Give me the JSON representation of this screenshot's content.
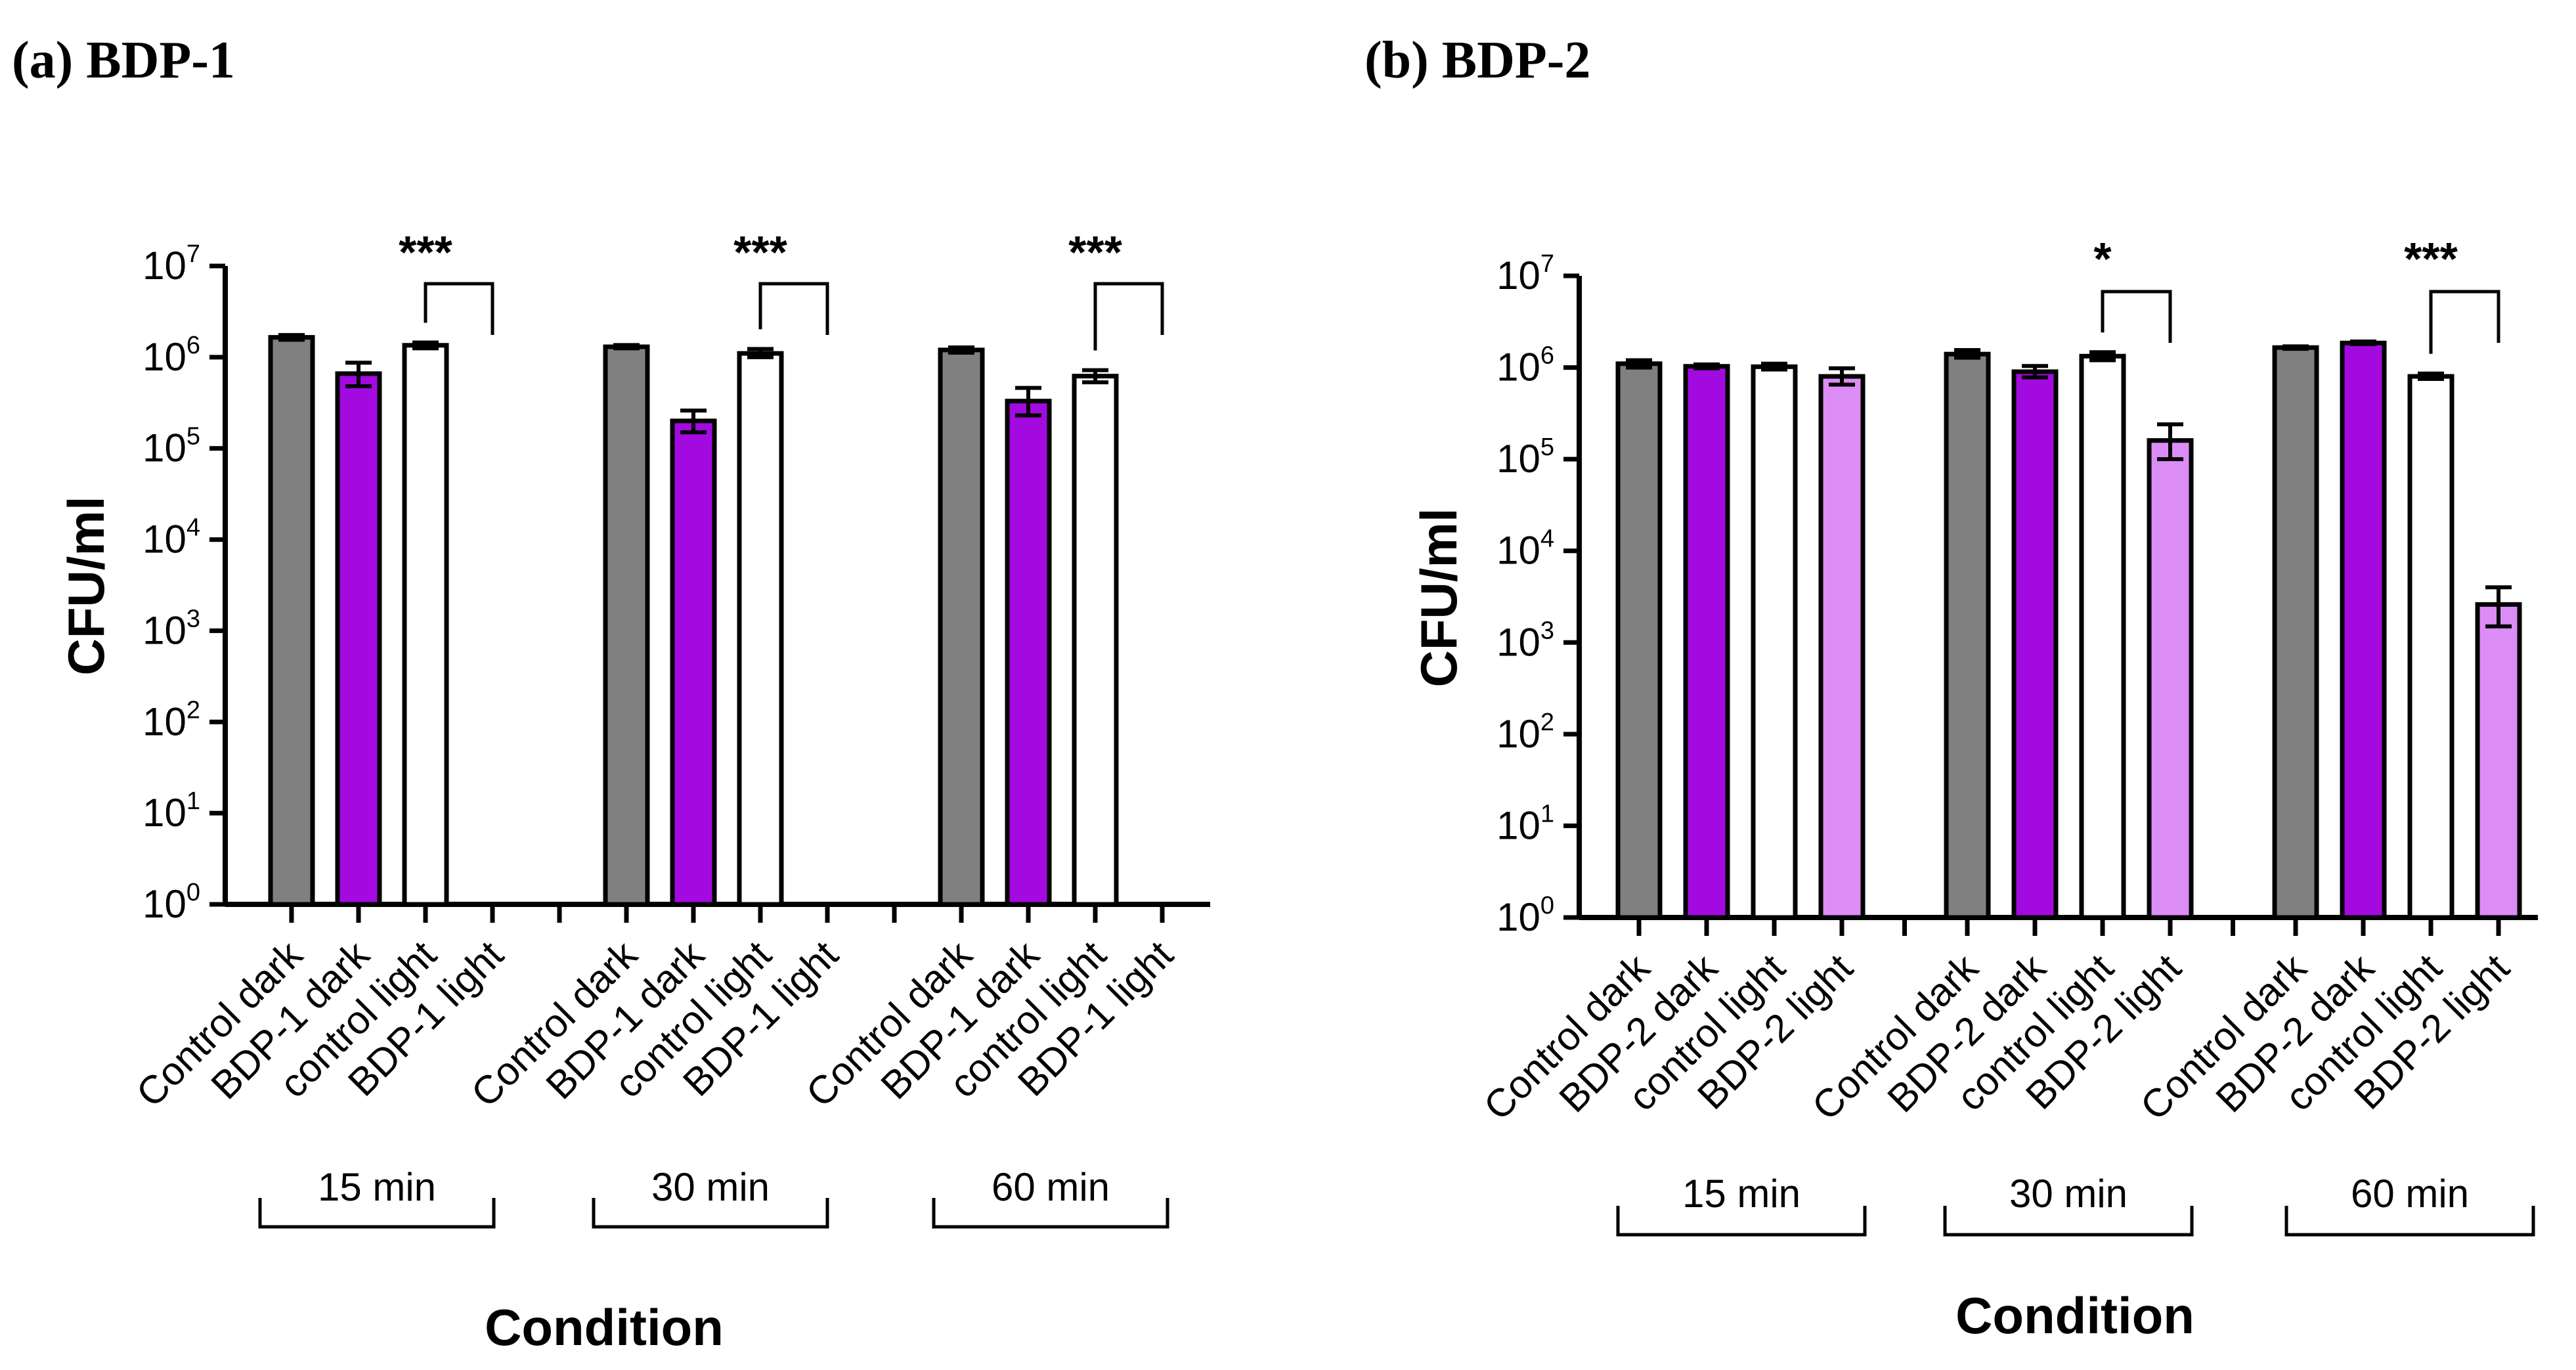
{
  "colors": {
    "control_dark": "#808080",
    "compound_dark": "#a30ae0",
    "control_light": "#ffffff",
    "compound_light": "#dc8cf5",
    "stroke": "#000000"
  },
  "chart_data": [
    {
      "type": "bar",
      "panel_title": "(a) BDP-1",
      "ylabel": "CFU/ml",
      "xlabel": "Condition",
      "yscale": "log",
      "ylim": [
        1,
        10000000
      ],
      "y_ticks": [
        {
          "base": "10",
          "exp": "0"
        },
        {
          "base": "10",
          "exp": "1"
        },
        {
          "base": "10",
          "exp": "2"
        },
        {
          "base": "10",
          "exp": "3"
        },
        {
          "base": "10",
          "exp": "4"
        },
        {
          "base": "10",
          "exp": "5"
        },
        {
          "base": "10",
          "exp": "6"
        },
        {
          "base": "10",
          "exp": "7"
        }
      ],
      "categories": [
        "Control dark",
        "BDP-1 dark",
        "control light",
        "BDP-1 light"
      ],
      "groups": [
        {
          "label": "15 min",
          "values": [
            1650000,
            660000,
            1350000,
            null
          ],
          "err": [
            [
              1550000,
              1750000
            ],
            [
              480000,
              870000
            ],
            [
              1250000,
              1450000
            ],
            null
          ],
          "sig": "***"
        },
        {
          "label": "30 min",
          "values": [
            1300000,
            200000,
            1100000,
            null
          ],
          "err": [
            [
              1250000,
              1360000
            ],
            [
              150000,
              260000
            ],
            [
              1000000,
              1230000
            ],
            null
          ],
          "sig": "***"
        },
        {
          "label": "60 min",
          "values": [
            1200000,
            330000,
            620000,
            null
          ],
          "err": [
            [
              1120000,
              1280000
            ],
            [
              230000,
              460000
            ],
            [
              530000,
              720000
            ],
            null
          ],
          "sig": "***"
        }
      ]
    },
    {
      "type": "bar",
      "panel_title": "(b) BDP-2",
      "ylabel": "CFU/ml",
      "xlabel": "Condition",
      "yscale": "log",
      "ylim": [
        1,
        10000000
      ],
      "y_ticks": [
        {
          "base": "10",
          "exp": "0"
        },
        {
          "base": "10",
          "exp": "1"
        },
        {
          "base": "10",
          "exp": "2"
        },
        {
          "base": "10",
          "exp": "3"
        },
        {
          "base": "10",
          "exp": "4"
        },
        {
          "base": "10",
          "exp": "5"
        },
        {
          "base": "10",
          "exp": "6"
        },
        {
          "base": "10",
          "exp": "7"
        }
      ],
      "categories": [
        "Control dark",
        "BDP-2 dark",
        "control light",
        "BDP-2 light"
      ],
      "groups": [
        {
          "label": "15 min",
          "values": [
            1100000,
            1030000,
            1020000,
            800000
          ],
          "err": [
            [
              1000000,
              1200000
            ],
            [
              980000,
              1080000
            ],
            [
              950000,
              1100000
            ],
            [
              650000,
              980000
            ]
          ],
          "sig": ""
        },
        {
          "label": "30 min",
          "values": [
            1400000,
            900000,
            1330000,
            160000
          ],
          "err": [
            [
              1280000,
              1550000
            ],
            [
              780000,
              1040000
            ],
            [
              1200000,
              1470000
            ],
            [
              100000,
              240000
            ]
          ],
          "sig": "*"
        },
        {
          "label": "60 min",
          "values": [
            1650000,
            1850000,
            800000,
            2600
          ],
          "err": [
            [
              1600000,
              1700000
            ],
            [
              1800000,
              1920000
            ],
            [
              750000,
              860000
            ],
            [
              1500,
              4000
            ]
          ],
          "sig": "***"
        }
      ]
    }
  ]
}
